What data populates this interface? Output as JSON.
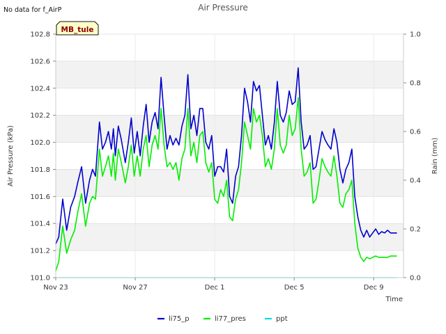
{
  "header": {
    "no_data_note": "No data for f_AirP",
    "station_badge": "MB_tule"
  },
  "chart_data": {
    "type": "line",
    "title": "Air Pressure",
    "xlabel": "Time",
    "ylabel": "Air Pressure (kPa)",
    "y2label": "Rain (mm)",
    "ylim": [
      101.0,
      102.8
    ],
    "y2lim": [
      0.0,
      1.0
    ],
    "x_start_day": 0,
    "x_end_day": 17.5,
    "x_tick_days": [
      0,
      4,
      8,
      12,
      16
    ],
    "x_tick_labels": [
      "Nov 23",
      "Nov 27",
      "Dec 1",
      "Dec 5",
      "Dec 9"
    ],
    "y_ticks": [
      101.0,
      101.2,
      101.4,
      101.6,
      101.8,
      102.0,
      102.2,
      102.4,
      102.6,
      102.8
    ],
    "y_tick_labels": [
      "101.0",
      "101.2",
      "101.4",
      "101.6",
      "101.8",
      "102.0",
      "102.2",
      "102.4",
      "102.6",
      "102.8"
    ],
    "y2_ticks": [
      0.0,
      0.2,
      0.4,
      0.6,
      0.8,
      1.0
    ],
    "y2_tick_labels": [
      "0.0",
      "0.2",
      "0.4",
      "0.6",
      "0.8",
      "1.0"
    ],
    "legend_position": "bottom-center",
    "series": [
      {
        "name": "li75_p",
        "color": "#0000cc",
        "axis": "left",
        "x": [
          0.0,
          0.15,
          0.35,
          0.55,
          0.75,
          0.95,
          1.1,
          1.3,
          1.5,
          1.7,
          1.85,
          2.0,
          2.2,
          2.35,
          2.5,
          2.65,
          2.8,
          2.9,
          3.0,
          3.15,
          3.3,
          3.5,
          3.65,
          3.8,
          3.95,
          4.1,
          4.25,
          4.4,
          4.55,
          4.7,
          4.85,
          5.0,
          5.15,
          5.3,
          5.45,
          5.6,
          5.75,
          5.9,
          6.05,
          6.2,
          6.35,
          6.5,
          6.65,
          6.8,
          6.95,
          7.1,
          7.25,
          7.4,
          7.55,
          7.7,
          7.85,
          8.0,
          8.15,
          8.3,
          8.45,
          8.6,
          8.75,
          8.9,
          9.05,
          9.2,
          9.35,
          9.5,
          9.65,
          9.8,
          9.95,
          10.1,
          10.25,
          10.4,
          10.55,
          10.7,
          10.85,
          11.0,
          11.15,
          11.3,
          11.45,
          11.6,
          11.75,
          11.9,
          12.05,
          12.2,
          12.35,
          12.5,
          12.65,
          12.8,
          12.95,
          13.1,
          13.25,
          13.4,
          13.55,
          13.7,
          13.85,
          14.0,
          14.15,
          14.3,
          14.45,
          14.6,
          14.75,
          14.9,
          15.05,
          15.2,
          15.35,
          15.5,
          15.65,
          15.8,
          15.95,
          16.1,
          16.25,
          16.4,
          16.55,
          16.7,
          16.85,
          17.0,
          17.15
        ],
        "values": [
          101.25,
          101.3,
          101.58,
          101.35,
          101.52,
          101.6,
          101.7,
          101.82,
          101.55,
          101.72,
          101.8,
          101.75,
          102.15,
          101.95,
          102.0,
          102.08,
          101.95,
          102.1,
          101.9,
          102.12,
          102.02,
          101.85,
          102.0,
          102.18,
          101.92,
          102.08,
          101.9,
          102.12,
          102.28,
          102.0,
          102.15,
          102.22,
          102.1,
          102.48,
          102.2,
          101.95,
          102.05,
          101.98,
          102.03,
          101.98,
          102.12,
          102.2,
          102.5,
          102.1,
          102.2,
          102.05,
          102.25,
          102.25,
          102.0,
          101.95,
          102.05,
          101.75,
          101.82,
          101.82,
          101.78,
          101.95,
          101.6,
          101.55,
          101.75,
          101.82,
          102.05,
          102.4,
          102.3,
          102.15,
          102.45,
          102.38,
          102.42,
          102.2,
          101.98,
          102.05,
          101.95,
          102.15,
          102.45,
          102.2,
          102.15,
          102.22,
          102.38,
          102.28,
          102.3,
          102.55,
          102.15,
          101.95,
          101.98,
          102.05,
          101.8,
          101.82,
          101.95,
          102.08,
          102.02,
          101.98,
          101.95,
          102.1,
          102.0,
          101.8,
          101.7,
          101.8,
          101.85,
          101.95,
          101.6,
          101.45,
          101.35,
          101.3,
          101.35,
          101.3,
          101.33,
          101.36,
          101.32,
          101.34,
          101.33,
          101.35,
          101.33,
          101.33,
          101.33
        ],
        "stroke_width": 1.6
      },
      {
        "name": "li77_pres",
        "color": "#00ee00",
        "axis": "left",
        "x": [
          0.0,
          0.15,
          0.35,
          0.55,
          0.75,
          0.95,
          1.1,
          1.3,
          1.5,
          1.7,
          1.85,
          2.0,
          2.2,
          2.35,
          2.5,
          2.65,
          2.8,
          2.9,
          3.0,
          3.15,
          3.3,
          3.5,
          3.65,
          3.8,
          3.95,
          4.1,
          4.25,
          4.4,
          4.55,
          4.7,
          4.85,
          5.0,
          5.15,
          5.3,
          5.45,
          5.6,
          5.75,
          5.9,
          6.05,
          6.2,
          6.35,
          6.5,
          6.65,
          6.8,
          6.95,
          7.1,
          7.25,
          7.4,
          7.55,
          7.7,
          7.85,
          8.0,
          8.15,
          8.3,
          8.45,
          8.6,
          8.75,
          8.9,
          9.05,
          9.2,
          9.35,
          9.5,
          9.65,
          9.8,
          9.95,
          10.1,
          10.25,
          10.4,
          10.55,
          10.7,
          10.85,
          11.0,
          11.15,
          11.3,
          11.45,
          11.6,
          11.75,
          11.9,
          12.05,
          12.2,
          12.35,
          12.5,
          12.65,
          12.8,
          12.95,
          13.1,
          13.25,
          13.4,
          13.55,
          13.7,
          13.85,
          14.0,
          14.15,
          14.3,
          14.45,
          14.6,
          14.75,
          14.9,
          15.05,
          15.2,
          15.35,
          15.5,
          15.65,
          15.8,
          15.95,
          16.1,
          16.25,
          16.4,
          16.55,
          16.7,
          16.85,
          17.0,
          17.15
        ],
        "values": [
          101.05,
          101.12,
          101.38,
          101.18,
          101.28,
          101.35,
          101.48,
          101.62,
          101.38,
          101.55,
          101.6,
          101.58,
          101.95,
          101.75,
          101.82,
          101.9,
          101.75,
          101.92,
          101.72,
          101.95,
          101.85,
          101.7,
          101.82,
          101.98,
          101.75,
          101.9,
          101.75,
          101.95,
          102.05,
          101.82,
          101.98,
          102.05,
          101.95,
          102.25,
          101.98,
          101.82,
          101.85,
          101.8,
          101.85,
          101.72,
          101.88,
          101.95,
          102.25,
          101.9,
          102.0,
          101.85,
          102.05,
          102.08,
          101.85,
          101.78,
          101.85,
          101.58,
          101.55,
          101.65,
          101.6,
          101.72,
          101.45,
          101.42,
          101.58,
          101.65,
          101.85,
          102.15,
          102.05,
          101.95,
          102.25,
          102.15,
          102.2,
          102.05,
          101.82,
          101.88,
          101.8,
          101.95,
          102.25,
          101.98,
          101.92,
          101.98,
          102.2,
          102.05,
          102.1,
          102.33,
          101.95,
          101.75,
          101.78,
          101.85,
          101.55,
          101.58,
          101.72,
          101.88,
          101.82,
          101.78,
          101.75,
          101.9,
          101.75,
          101.55,
          101.52,
          101.62,
          101.65,
          101.72,
          101.4,
          101.22,
          101.15,
          101.12,
          101.15,
          101.14,
          101.15,
          101.16,
          101.15,
          101.15,
          101.15,
          101.15,
          101.16,
          101.16,
          101.16
        ],
        "stroke_width": 1.6
      },
      {
        "name": "ppt",
        "color": "#00dddd",
        "axis": "right",
        "x": [
          0.0,
          17.15
        ],
        "values": [
          0.0,
          0.0
        ],
        "stroke_width": 1.2
      }
    ]
  }
}
